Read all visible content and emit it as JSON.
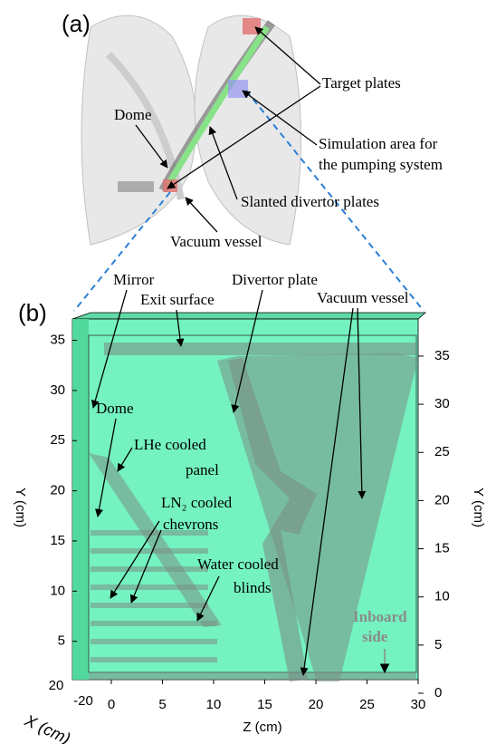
{
  "panel_a": {
    "label": "(a)",
    "target_plates": "Target plates",
    "dome": "Dome",
    "simulation_area": [
      "Simulation area for",
      "the pumping system"
    ],
    "slanted_plates": "Slanted divertor plates",
    "vacuum_vessel": "Vacuum vessel"
  },
  "panel_b": {
    "label": "(b)",
    "mirror": "Mirror",
    "exit_surface": "Exit surface",
    "divertor_plate": "Divertor plate",
    "vacuum_vessel": "Vacuum vessel",
    "dome": "Dome",
    "lhe_panel": [
      "LHe cooled",
      "panel"
    ],
    "ln2_chevrons": [
      "LN₂ cooled",
      "chevrons"
    ],
    "water_blinds": [
      "Water cooled",
      "blinds"
    ],
    "inboard": [
      "Inboard",
      "side"
    ],
    "y_axis_label": "Y (cm)",
    "y2_axis_label": "Y (cm)",
    "x_axis_label": "Z (cm)",
    "depth_axis_label": "X (cm)",
    "yticks": [
      5,
      10,
      15,
      20,
      25,
      30,
      35
    ],
    "y2ticks": [
      0,
      5,
      10,
      15,
      20,
      25,
      30,
      35
    ],
    "xticks": [
      0,
      5,
      10,
      15,
      20,
      25,
      30
    ],
    "depth_ticks": [
      -20,
      20
    ]
  }
}
